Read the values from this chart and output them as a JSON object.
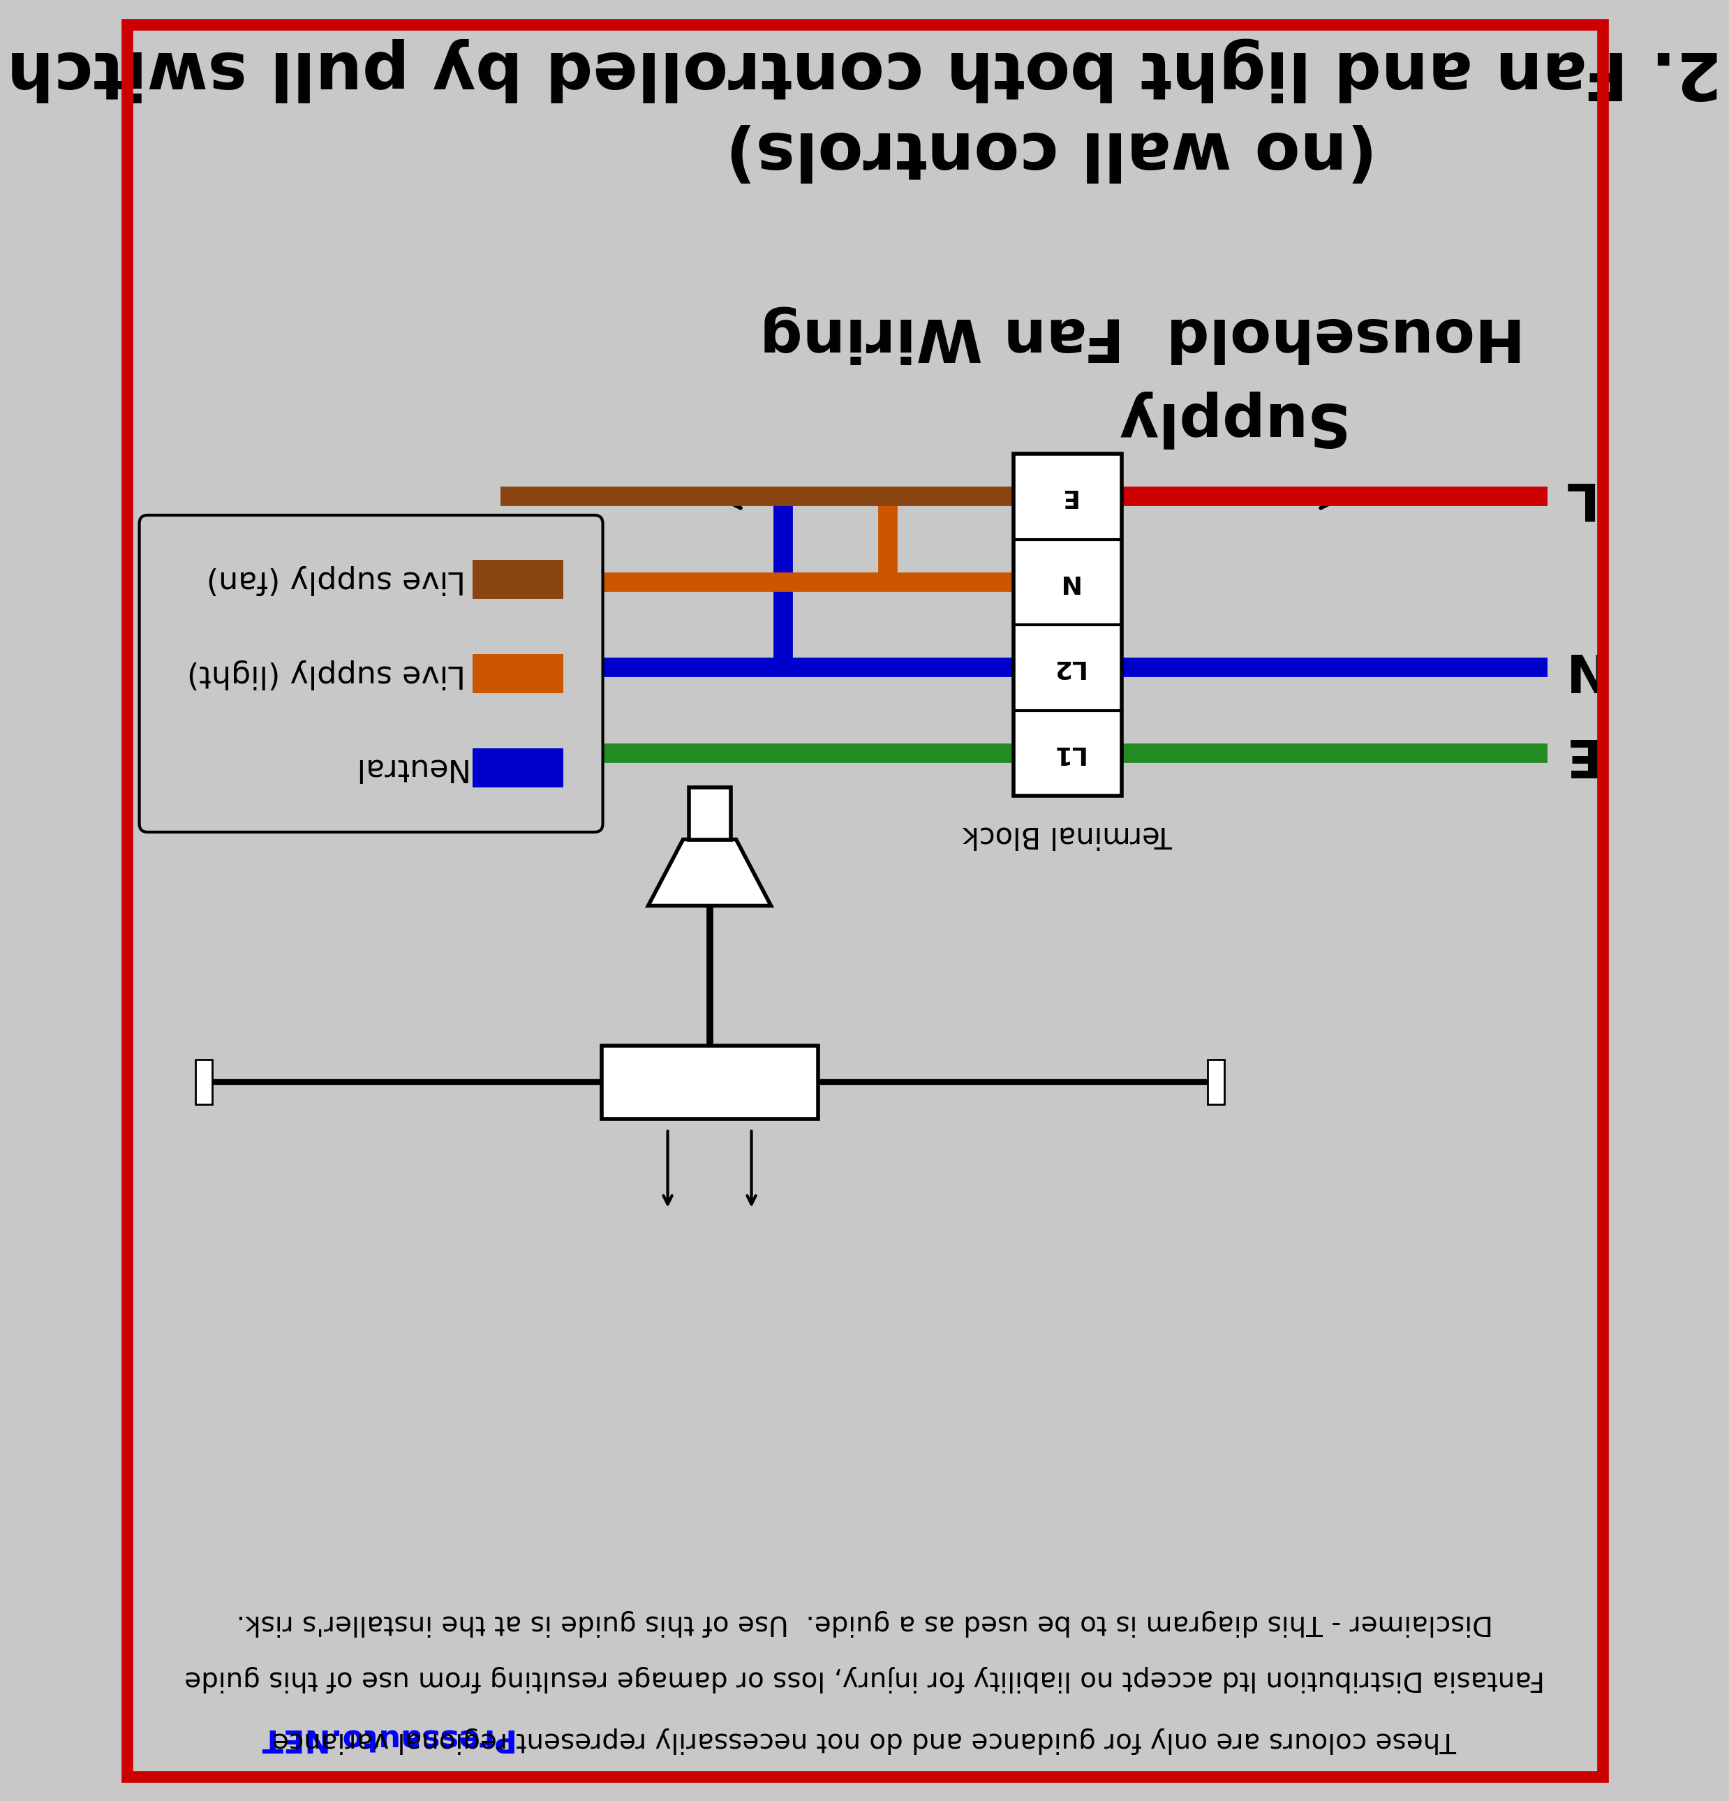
{
  "bg_color": "#c8c8c8",
  "border_color": "#cc0000",
  "title_line1": "2. Fan and light both controlled by pull switch",
  "title_line2": "(no wall controls)",
  "hfw_label": "Household  Fan Wiring",
  "supply_label": "Supply",
  "wire_brown": "#8B4513",
  "wire_orange": "#CC5500",
  "wire_blue": "#0000CC",
  "wire_green": "#228B22",
  "wire_red": "#CC0000",
  "legend_labels": [
    "Live supply (fan)",
    "Live supply (light)",
    "Neutral"
  ],
  "legend_colors": [
    "#8B4513",
    "#CC5500",
    "#0000CC"
  ],
  "terminal_labels": [
    "L1",
    "L2",
    "N",
    "E"
  ],
  "label_L": "L",
  "label_N": "N",
  "label_E": "E",
  "disclaimer1": "Disclaimer - This diagram is to be used as a guide.  Use of this guide is at the installer's risk.",
  "disclaimer2": "Fantasia Distribution ltd accept no liability for injury, loss or damage resulting from use of this guide",
  "disclaimer3": "These colours are only for guidance and do not necessarily represent regional variance",
  "pressauto": "Pressauto.NET"
}
